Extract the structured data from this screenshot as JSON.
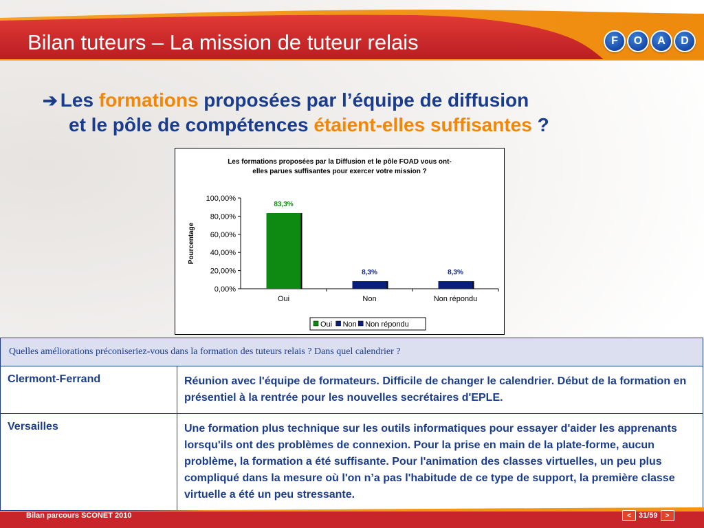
{
  "slide": {
    "title": "Bilan tuteurs – La mission de tuteur relais",
    "logo_letters": [
      "F",
      "O",
      "A",
      "D"
    ],
    "heading": {
      "arrow": "➔",
      "line1_a": "Les ",
      "line1_b": "formations",
      "line1_c": " proposées par l’équipe de diffusion",
      "line2_a": "et le pôle de compétences ",
      "line2_b": "étaient-elles suffisantes",
      "line2_c": " ?"
    },
    "footer_label": "Bilan parcours SCONET 2010",
    "page": "31/59",
    "prev_icon": "chevron-left-icon",
    "next_icon": "chevron-right-icon"
  },
  "colors": {
    "header_red": "#d0272a",
    "header_orange": "#f39512",
    "heading_blue": "#1a3c8c",
    "heading_orange": "#f0860a",
    "bar_green": "#0e8a12",
    "bar_navy": "#0a1f7a"
  },
  "chart_data": {
    "type": "bar",
    "title_line1": "Les formations proposées par la Diffusion et le pôle FOAD vous ont-",
    "title_line2": "elles parues suffisantes pour exercer votre mission ?",
    "ylabel": "Pourcentage",
    "xlabel": "",
    "categories": [
      "Oui",
      "Non",
      "Non répondu"
    ],
    "values": [
      83.3,
      8.3,
      8.3
    ],
    "value_labels": [
      "83,3%",
      "8,3%",
      "8,3%"
    ],
    "value_label_colors": [
      "#0e8a12",
      "#0a1f7a",
      "#0a1f7a"
    ],
    "bar_colors": [
      "#0e8a12",
      "#0a1f7a",
      "#0a1f7a"
    ],
    "ylim": [
      0,
      100
    ],
    "yticks": [
      0,
      20,
      40,
      60,
      80,
      100
    ],
    "ytick_labels": [
      "0,00%",
      "20,00%",
      "40,00%",
      "60,00%",
      "80,00%",
      "100,00%"
    ],
    "legend": [
      "Oui",
      "Non",
      "Non répondu"
    ],
    "legend_position": "bottom",
    "grid": false
  },
  "table": {
    "question": "Quelles améliorations préconiseriez-vous dans la formation des tuteurs relais ? Dans quel calendrier ?",
    "rows": [
      {
        "city": "Clermont-Ferrand",
        "answer": "Réunion avec l'équipe de formateurs. Difficile de changer le calendrier. Début de la formation en présentiel à la rentrée pour les nouvelles secrétaires d'EPLE."
      },
      {
        "city": "Versailles",
        "answer": "Une formation plus technique sur les outils informatiques pour essayer d'aider les apprenants lorsqu'ils ont des problèmes de connexion. Pour la prise en main de la plate-forme, aucun problème, la formation a été suffisante. Pour l'animation des classes virtuelles, un peu plus compliqué dans la mesure où l'on n’a pas l'habitude de ce type de support, la première classe virtuelle a été un peu stressante."
      }
    ]
  }
}
